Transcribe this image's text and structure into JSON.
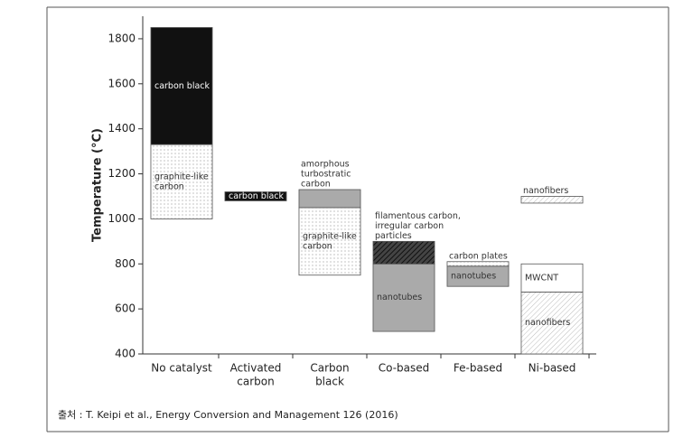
{
  "chart_data": {
    "type": "floating-bar",
    "y_label": "Temperature (°C)",
    "source": "출처 : T.  Keipi  et  al., Energy  Conversion  and  Management  126  (2016)",
    "ylim": [
      400,
      1900
    ],
    "yticks": [
      400,
      600,
      800,
      1000,
      1200,
      1400,
      1600,
      1800
    ],
    "groups": [
      {
        "category": [
          "No catalyst"
        ],
        "segments": [
          {
            "label": [
              "graphite-like",
              "carbon"
            ],
            "low": 1000,
            "high": 1330,
            "fill_style": "dots",
            "label_position": "inside"
          },
          {
            "label": [
              "carbon black"
            ],
            "low": 1330,
            "high": 1850,
            "fill_style": "black",
            "label_position": "inside"
          }
        ]
      },
      {
        "category": [
          "Activated",
          "carbon"
        ],
        "segments": [
          {
            "label": [
              "carbon black"
            ],
            "low": 1080,
            "high": 1120,
            "fill_style": "black",
            "label_position": "inside"
          }
        ]
      },
      {
        "category": [
          "Carbon",
          "black"
        ],
        "segments": [
          {
            "label": [
              "graphite-like",
              "carbon"
            ],
            "low": 750,
            "high": 1050,
            "fill_style": "dots",
            "label_position": "inside"
          },
          {
            "label": [
              "amorphous",
              "turbostratic",
              "carbon"
            ],
            "low": 1050,
            "high": 1130,
            "fill_style": "gray",
            "label_position": "above"
          }
        ]
      },
      {
        "category": [
          "Co-based"
        ],
        "segments": [
          {
            "label": [
              "nanotubes"
            ],
            "low": 500,
            "high": 800,
            "fill_style": "gray",
            "label_position": "inside"
          },
          {
            "label": [
              "filamentous carbon,",
              "irregular carbon",
              "particles"
            ],
            "low": 800,
            "high": 900,
            "fill_style": "hatch-dark",
            "label_position": "above"
          }
        ]
      },
      {
        "category": [
          "Fe-based"
        ],
        "segments": [
          {
            "label": [
              "nanotubes"
            ],
            "low": 700,
            "high": 790,
            "fill_style": "gray",
            "label_position": "inside"
          },
          {
            "label": [
              "carbon plates"
            ],
            "low": 790,
            "high": 810,
            "fill_style": "dots",
            "label_position": "above"
          }
        ]
      },
      {
        "category": [
          "Ni-based"
        ],
        "segments": [
          {
            "label": [
              "nanofibers"
            ],
            "low": 400,
            "high": 675,
            "fill_style": "hatch-light",
            "label_position": "inside"
          },
          {
            "label": [
              "MWCNT"
            ],
            "low": 675,
            "high": 800,
            "fill_style": "white",
            "label_position": "inside"
          },
          {
            "label": [
              "nanofibers"
            ],
            "low": 1070,
            "high": 1100,
            "fill_style": "hatch-light",
            "label_position": "above"
          }
        ]
      }
    ]
  }
}
